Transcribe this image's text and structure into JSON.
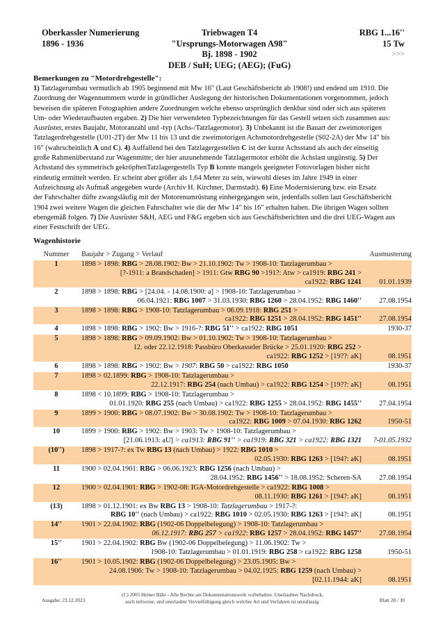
{
  "header": {
    "left": [
      "Oberkassler Numerierung",
      "1896 - 1936"
    ],
    "center": [
      "Triebwagen T4",
      "\"Ursprungs-Motorwagen A98\"",
      "Bj. 1898 - 1902",
      "DEB / SuH; UEG; (AEG); (FuG)"
    ],
    "right": [
      "RBG 1...16''",
      "15 Tw"
    ],
    "more": ">>>"
  },
  "remarks": {
    "title": "Bemerkungen zu \"Motordrehgestelle\":",
    "lines": [
      [
        {
          "t": "1)",
          "s": "b"
        },
        {
          "t": " Tatzlagerumbau vermutlich ab 1905 beginnend mit Mw 16\" (Laut Geschäftsbericht ab 1908!) und endend um 1910. Die"
        }
      ],
      [
        {
          "t": "Zuordnung der Wagennummern wurde in gründlicher Auslegung der historischen Dokumentationen vorgenommen, jedoch"
        }
      ],
      [
        {
          "t": "beweisen die späteren Fotographien andere Zuordnungen welche ebenso ursprünglich denkbar sind oder sich aus späteren"
        }
      ],
      [
        {
          "t": "Um- oder Wiederaufbauten ergaben. "
        },
        {
          "t": "2)",
          "s": "b"
        },
        {
          "t": " Die hier verwendeten Typbezeichnungen für das Gestell setzen sich zusammen aus:"
        }
      ],
      [
        {
          "t": "Ausrüster, erstes Baujahr, Motoranzahl und -typ (Achs-/Tatzlagermotor). "
        },
        {
          "t": "3)",
          "s": "b"
        },
        {
          "t": " Unbekannt ist die Bauart der zweimotorigen"
        }
      ],
      [
        {
          "t": "Tatzlagerdrehgestelle (U01-2T) der Mw 11 bis 13 und die zweimotorigen Achsmotordrehgestelle (S02-2A) der Mw 14\" bis"
        }
      ],
      [
        {
          "t": "16\" (wahrscheinlich "
        },
        {
          "t": "A",
          "s": "b"
        },
        {
          "t": " und "
        },
        {
          "t": "C",
          "s": "b"
        },
        {
          "t": "). "
        },
        {
          "t": "4)",
          "s": "b"
        },
        {
          "t": " Auffallend bei den Tatzlagergestellen "
        },
        {
          "t": "C",
          "s": "b"
        },
        {
          "t": " ist der kurze Achsstand als auch der einseitig"
        }
      ],
      [
        {
          "t": "große Rahmenüberstand zur Wagenmitte; der hier anzunehmende Tatzlagermotor erhöht die Achslast ungünstig. "
        },
        {
          "t": "5)",
          "s": "b"
        },
        {
          "t": " Der"
        }
      ],
      [
        {
          "t": "Achsstand des symmetrisch gekröpftenTatzlagergestells Typ "
        },
        {
          "t": "B",
          "s": "b"
        },
        {
          "t": " konnte mangels geeigneter Fotovorlagen bisher nicht"
        }
      ],
      [
        {
          "t": "eindeutig ermittelt werden. Er scheint aber größer als 1,64 Meter zu sein, wiewohl dieses im Jahre 1949 in einer"
        }
      ],
      [
        {
          "t": "Aufzeichnung als Aufmaß angegeben wurde (Archiv H. Kirchner, Darmstadt). "
        },
        {
          "t": "6)",
          "s": "b"
        },
        {
          "t": " Eine Modernisierung bzw. ein Ersatz"
        }
      ],
      [
        {
          "t": "der Fahrschalter düfte zwangsläufig mit der Motorenumrüstung einhergegangen sein, jedenfalls sollen laut Geschäftsbericht"
        }
      ],
      [
        {
          "t": "1904 zwei weitere Wagen die gleichen Fahrschalter wie die der Mw 14\" bis 16\" erhalten haben. Die übrigen Wagen sollten"
        }
      ],
      [
        {
          "t": "ebengemäß folgen. "
        },
        {
          "t": "7)",
          "s": "b"
        },
        {
          "t": " Die Ausrüster S&H, AEG und F&G ergeben sich aus Geschäftsberichten und die drei UEG-Wagen aus"
        }
      ],
      [
        {
          "t": "einer Festschrift der UEG."
        }
      ]
    ]
  },
  "history": {
    "title": "Wagenhistorie",
    "columns": {
      "num": "Nummer",
      "text": "Baujahr > Zugang > Verlauf",
      "aus": "Ausmusterung"
    },
    "highlight_color": "#fcd2a4",
    "rows": [
      {
        "num": "1",
        "hl": true,
        "aus": "01.01.1939",
        "lines": [
          [
            {
              "t": "1898 > 1898: "
            },
            {
              "t": "RBG",
              "s": "b"
            },
            {
              "t": " > 28.08.1902: Bw > 21.10.1902: Tw > 1908-10: Tatzlagerumbau >"
            }
          ],
          [
            {
              "t": "[?-1911: a Brandschaden] >  1911: Gtw "
            },
            {
              "t": "RBG 90",
              "s": "b"
            },
            {
              "t": " >191?: Atw > ca1919: "
            },
            {
              "t": "RBG 241",
              "s": "b"
            },
            {
              "t": " >"
            }
          ],
          [
            {
              "t": "ca1922: "
            },
            {
              "t": "RBG 1241",
              "s": "b"
            }
          ]
        ]
      },
      {
        "num": "2",
        "hl": false,
        "aus": "27.08.1954",
        "lines": [
          [
            {
              "t": "1898 > 1898: "
            },
            {
              "t": "RBG",
              "s": "b"
            },
            {
              "t": " > [24.04. - 14.08.1900: a] > 1908-10: Tatzlagerumbau >"
            }
          ],
          [
            {
              "t": "06.04.1921: "
            },
            {
              "t": "RBG 1007",
              "s": "b"
            },
            {
              "t": " >  31.03.1930: "
            },
            {
              "t": "RBG 1260",
              "s": "b"
            },
            {
              "t": " > 28.04.1952: "
            },
            {
              "t": "RBG 1460''",
              "s": "b"
            }
          ]
        ]
      },
      {
        "num": "3",
        "hl": true,
        "aus": "27.08.1954",
        "lines": [
          [
            {
              "t": "1898 > 1898: "
            },
            {
              "t": "RBG",
              "s": "b"
            },
            {
              "t": " > 1908-10: Tatzlagerumbau > 06.09.1918: "
            },
            {
              "t": "RBG 251",
              "s": "b"
            },
            {
              "t": " >"
            }
          ],
          [
            {
              "t": "ca1922: "
            },
            {
              "t": "RBG 1251",
              "s": "b"
            },
            {
              "t": " > 28.04.1952: "
            },
            {
              "t": "RBG 1451''",
              "s": "b"
            }
          ]
        ]
      },
      {
        "num": "4",
        "hl": false,
        "aus": "1930-37",
        "lines": [
          [
            {
              "t": "1898 > 1898: "
            },
            {
              "t": "RBG",
              "s": "b"
            },
            {
              "t": " > 1902: Bw > 1916-?: "
            },
            {
              "t": "RBG 51''",
              "s": "b"
            },
            {
              "t": " > ca1922: "
            },
            {
              "t": "RBG 1051",
              "s": "b"
            }
          ]
        ]
      },
      {
        "num": "5",
        "hl": true,
        "aus": "08.1951",
        "lines": [
          [
            {
              "t": "1898 > 1898: "
            },
            {
              "t": "RBG",
              "s": "b"
            },
            {
              "t": " > 09.09.1902: Bw > 01.10.1902: Tw > 1908-10: Tatzlagerumbau >"
            }
          ],
          [
            {
              "t": "12. oder 22.12.1918: Passbüro Oberkasseler Brücke > 25.01.1920: "
            },
            {
              "t": "RBG 252",
              "s": "b"
            },
            {
              "t": " >"
            }
          ],
          [
            {
              "t": "ca1922: "
            },
            {
              "t": "RBG 1252",
              "s": "b"
            },
            {
              "t": " > [19??: aK]"
            }
          ]
        ]
      },
      {
        "num": "6",
        "hl": false,
        "aus": "1930-37",
        "lines": [
          [
            {
              "t": "1898 > 1898: "
            },
            {
              "t": "RBG",
              "s": "b"
            },
            {
              "t": " > 1902: Bw > "
            },
            {
              "t": "1907",
              "s": "i"
            },
            {
              "t": ": "
            },
            {
              "t": "RBG 50",
              "s": "b"
            },
            {
              "t": " > ca1922: "
            },
            {
              "t": "RBG 1050",
              "s": "b"
            }
          ]
        ]
      },
      {
        "num": "7",
        "hl": true,
        "aus": "08.1951",
        "lines": [
          [
            {
              "t": "1898 > 02.1899: "
            },
            {
              "t": "RBG",
              "s": "b"
            },
            {
              "t": " > 1908-10: Tatzlagerumbau >"
            }
          ],
          [
            {
              "t": "22.12.1917: "
            },
            {
              "t": "RBG 254",
              "s": "b"
            },
            {
              "t": " (nach Umbau) > ca1922: "
            },
            {
              "t": "RBG 1254",
              "s": "b"
            },
            {
              "t": " > [19??: aK]"
            }
          ]
        ]
      },
      {
        "num": "8",
        "hl": false,
        "aus": "27.04.1954",
        "lines": [
          [
            {
              "t": "1898 < 10.1899: "
            },
            {
              "t": "RBG",
              "s": "b"
            },
            {
              "t": " > 1908-10: Tatzlagerumbau >"
            }
          ],
          [
            {
              "t": "01.01.1920: "
            },
            {
              "t": "RBG 255",
              "s": "b"
            },
            {
              "t": " (nach Umbau) > ca1922: "
            },
            {
              "t": "RBG 1255",
              "s": "b"
            },
            {
              "t": " >  28.04.1952: "
            },
            {
              "t": "RBG 1455''",
              "s": "b"
            }
          ]
        ]
      },
      {
        "num": "9",
        "hl": true,
        "aus": "1950-51",
        "lines": [
          [
            {
              "t": "1899 > 1900: "
            },
            {
              "t": "RBG",
              "s": "b"
            },
            {
              "t": " > 08.07.1902: Bw > 30.08.1902: Tw > 1908-10: Tatzlagerumbau >"
            }
          ],
          [
            {
              "t": "ca1922: "
            },
            {
              "t": "RBG 1009",
              "s": "b"
            },
            {
              "t": " > 07.04.1930: "
            },
            {
              "t": "RBG 1262",
              "s": "b"
            }
          ]
        ]
      },
      {
        "num": "10",
        "hl": false,
        "aus": "?-01.05.1932",
        "aus_italic": true,
        "lines": [
          [
            {
              "t": "1899 > 1900: "
            },
            {
              "t": "RBG",
              "s": "b"
            },
            {
              "t": " > 1902: Bw > 1903: Tw > 1908-10: Tatzlagerumbau >"
            }
          ],
          [
            {
              "t": "[21.06.1913: aU] "
            },
            {
              "t": "> ca1913: ",
              "s": "i"
            },
            {
              "t": "RBG 91''",
              "s": "bi"
            },
            {
              "t": " > ca1919: ",
              "s": "i"
            },
            {
              "t": "RBG 321",
              "s": "bi"
            },
            {
              "t": " > ca1922: ",
              "s": "i"
            },
            {
              "t": "RBG 1321",
              "s": "bi"
            }
          ]
        ]
      },
      {
        "num": "(10'')",
        "hl": true,
        "aus": "08.1951",
        "lines": [
          [
            {
              "t": "1898 > 1917-?: ex Tw "
            },
            {
              "t": "RBG 13",
              "s": "b"
            },
            {
              "t": " (nach Umbau) > 1922: "
            },
            {
              "t": "RBG 1010",
              "s": "b"
            },
            {
              "t": " >"
            }
          ],
          [
            {
              "t": "02.05.1930: "
            },
            {
              "t": "RBG 1263",
              "s": "b"
            },
            {
              "t": " > [194?: aK]"
            }
          ]
        ]
      },
      {
        "num": "11",
        "hl": false,
        "aus": "27.08.1954",
        "lines": [
          [
            {
              "t": "1900 > 02.04.1901: "
            },
            {
              "t": "RBG",
              "s": "b"
            },
            {
              "t": " > 06.06.1923: "
            },
            {
              "t": "RBG 1256",
              "s": "b"
            },
            {
              "t": " (nach Umbau) >"
            }
          ],
          [
            {
              "t": "28.04.1952: "
            },
            {
              "t": "RBG 1456''",
              "s": "b"
            },
            {
              "t": " > 18.08.1952: Scheren-SA"
            }
          ]
        ]
      },
      {
        "num": "12",
        "hl": true,
        "aus": "08.1951",
        "lines": [
          [
            {
              "t": "1900 > 02.04.1901: "
            },
            {
              "t": "RBG",
              "s": "b"
            },
            {
              "t": " > 1902-08: IGA-Motordrehgestelle > ca1922: "
            },
            {
              "t": "RBG 1008",
              "s": "b"
            },
            {
              "t": " >"
            }
          ],
          [
            {
              "t": "08.11.1930: "
            },
            {
              "t": "RBG 1261",
              "s": "b"
            },
            {
              "t": " > [194?: aK]"
            }
          ]
        ]
      },
      {
        "num": "(13)",
        "hl": false,
        "aus": "08.1951",
        "lines": [
          [
            {
              "t": "1898 > 01.12.1901: ex Bw "
            },
            {
              "t": "RBG 13",
              "s": "b"
            },
            {
              "t": " > 1908-10: "
            },
            {
              "t": "Tatzlagerumbau",
              "s": "i"
            },
            {
              "t": " > 1917-?:"
            }
          ],
          [
            {
              "t": "RBG 10''",
              "s": "b"
            },
            {
              "t": " (nach Umbau) > ca1922: "
            },
            {
              "t": "RBG 1010",
              "s": "b"
            },
            {
              "t": " > 02.05.1930: "
            },
            {
              "t": "RBG 1263",
              "s": "b"
            },
            {
              "t": " > [194?: aK]"
            }
          ]
        ]
      },
      {
        "num": "14''",
        "hl": true,
        "aus": "27.08.1954",
        "lines": [
          [
            {
              "t": "1901 > 22.04.1902: "
            },
            {
              "t": "RBG",
              "s": "b"
            },
            {
              "t": " (1902-06 Doppelbelegung) > 1908-10: Tatzlagerumbau >"
            }
          ],
          [
            {
              "t": "06.12.1917: ",
              "s": "i"
            },
            {
              "t": "RBG 257",
              "s": "bi"
            },
            {
              "t": " > ca1922",
              "s": "i"
            },
            {
              "t": ": "
            },
            {
              "t": "RBG 1257",
              "s": "b"
            },
            {
              "t": " > 28.04.1952: "
            },
            {
              "t": "RBG 1457''",
              "s": "b"
            }
          ]
        ]
      },
      {
        "num": "15''",
        "hl": false,
        "aus": "1950-51",
        "lines": [
          [
            {
              "t": "1901 > 22.04.1902: "
            },
            {
              "t": "RBG",
              "s": "b"
            },
            {
              "t": " Bw (1902-06 Doppelbelegung) > 11.06.1902: Tw >"
            }
          ],
          [
            {
              "t": "1908-10: Tatzlagerumbau > 01.01.1919: "
            },
            {
              "t": "RBG 258",
              "s": "b"
            },
            {
              "t": " > ca1922: "
            },
            {
              "t": "RBG 1258",
              "s": "b"
            }
          ]
        ]
      },
      {
        "num": "16''",
        "hl": true,
        "aus": "08.1951",
        "lines": [
          [
            {
              "t": "1901 > 10.05.1902: "
            },
            {
              "t": "RBG",
              "s": "b"
            },
            {
              "t": " (1902-06 Doppelbelegung) > 23.05.1905: Bw >"
            }
          ],
          [
            {
              "t": "24.08.1906: Tw > 1908-10: Tatzlagerumbau > 04.02.1925: "
            },
            {
              "t": "RBG 1259",
              "s": "b"
            },
            {
              "t": " (nach Umbau) >"
            }
          ],
          [
            {
              "t": "[02.11.1944: aK]"
            }
          ]
        ]
      }
    ]
  },
  "footer": {
    "edition": "Ausgabe: 23.12.2023",
    "copyright": [
      "(C) 2005 Heiner Bähr - Alle Rechte am Dokumentationswerk vorbehalten. Unerlaubter Nachdruck,",
      "auch teilweise, und unerlaubte Vervielfältigung gleich welcher Art und Verfahren ist unzulässig."
    ],
    "page": "Blatt 28 / 30"
  }
}
